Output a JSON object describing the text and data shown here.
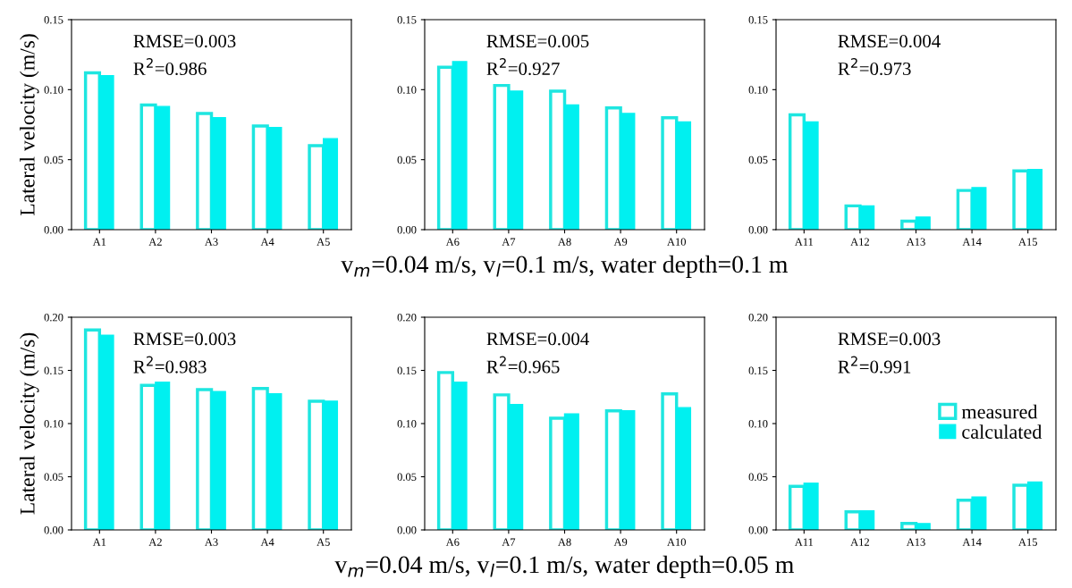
{
  "chart_data": [
    {
      "type": "bar",
      "ylabel": "Lateral velocity (m/s)",
      "categories": [
        "A1",
        "A2",
        "A3",
        "A4",
        "A5"
      ],
      "ylim": [
        0,
        0.15
      ],
      "yticks": [
        {
          "value": 0,
          "label": "0.00"
        },
        {
          "value": 0.05,
          "label": "0.05"
        },
        {
          "value": 0.1,
          "label": "0.10"
        },
        {
          "value": 0.15,
          "label": "0.15"
        }
      ],
      "annotations": [
        "RMSE=0.003",
        "R$^{2}$=0.986"
      ],
      "legend": false,
      "series": [
        {
          "color": "#1ee6e0",
          "values": [
            0.112,
            0.089,
            0.083,
            0.074,
            0.06
          ]
        },
        {
          "color": "#00f0f0",
          "values": [
            0.11,
            0.088,
            0.08,
            0.073,
            0.065
          ]
        }
      ]
    },
    {
      "type": "bar",
      "xlabel": "v$_{m}$=0.04 m/s, v$_{l}$=0.1 m/s, water depth=0.1 m",
      "categories": [
        "A6",
        "A7",
        "A8",
        "A9",
        "A10"
      ],
      "ylim": [
        0,
        0.15
      ],
      "yticks": [
        {
          "value": 0,
          "label": "0.00"
        },
        {
          "value": 0.05,
          "label": "0.05"
        },
        {
          "value": 0.1,
          "label": "0.10"
        },
        {
          "value": 0.15,
          "label": "0.15"
        }
      ],
      "annotations": [
        "RMSE=0.005",
        "R$^{2}$=0.927"
      ],
      "legend": false,
      "series": [
        {
          "color": "#1ee6e0",
          "values": [
            0.116,
            0.103,
            0.099,
            0.087,
            0.08
          ]
        },
        {
          "color": "#00f0f0",
          "values": [
            0.12,
            0.099,
            0.089,
            0.083,
            0.077
          ]
        }
      ]
    },
    {
      "type": "bar",
      "categories": [
        "A11",
        "A12",
        "A13",
        "A14",
        "A15"
      ],
      "ylim": [
        0,
        0.15
      ],
      "yticks": [
        {
          "value": 0,
          "label": "0.00"
        },
        {
          "value": 0.05,
          "label": "0.05"
        },
        {
          "value": 0.1,
          "label": "0.10"
        },
        {
          "value": 0.15,
          "label": "0.15"
        }
      ],
      "annotations": [
        "RMSE=0.004",
        "R$^{2}$=0.973"
      ],
      "legend": false,
      "series": [
        {
          "color": "#1ee6e0",
          "values": [
            0.082,
            0.017,
            0.006,
            0.028,
            0.042
          ]
        },
        {
          "color": "#00f0f0",
          "values": [
            0.077,
            0.017,
            0.009,
            0.03,
            0.043
          ]
        }
      ]
    },
    {
      "type": "bar",
      "ylabel": "Lateral velocity (m/s)",
      "categories": [
        "A1",
        "A2",
        "A3",
        "A4",
        "A5"
      ],
      "ylim": [
        0,
        0.2
      ],
      "yticks": [
        {
          "value": 0,
          "label": "0.00"
        },
        {
          "value": 0.05,
          "label": "0.05"
        },
        {
          "value": 0.1,
          "label": "0.10"
        },
        {
          "value": 0.15,
          "label": "0.15"
        },
        {
          "value": 0.2,
          "label": "0.20"
        }
      ],
      "annotations": [
        "RMSE=0.003",
        "R$^{2}$=0.983"
      ],
      "legend": false,
      "series": [
        {
          "color": "#1ee6e0",
          "values": [
            0.188,
            0.136,
            0.132,
            0.133,
            0.121
          ]
        },
        {
          "color": "#00f0f0",
          "values": [
            0.183,
            0.139,
            0.13,
            0.128,
            0.121
          ]
        }
      ]
    },
    {
      "type": "bar",
      "xlabel": "v$_{m}$=0.04 m/s, v$_{l}$=0.1 m/s, water depth=0.05 m",
      "categories": [
        "A6",
        "A7",
        "A8",
        "A9",
        "A10"
      ],
      "ylim": [
        0,
        0.2
      ],
      "yticks": [
        {
          "value": 0,
          "label": "0.00"
        },
        {
          "value": 0.05,
          "label": "0.05"
        },
        {
          "value": 0.1,
          "label": "0.10"
        },
        {
          "value": 0.15,
          "label": "0.15"
        },
        {
          "value": 0.2,
          "label": "0.20"
        }
      ],
      "annotations": [
        "RMSE=0.004",
        "R$^{2}$=0.965"
      ],
      "legend": false,
      "series": [
        {
          "color": "#1ee6e0",
          "values": [
            0.148,
            0.127,
            0.105,
            0.112,
            0.128
          ]
        },
        {
          "color": "#00f0f0",
          "values": [
            0.139,
            0.118,
            0.109,
            0.112,
            0.115
          ]
        }
      ]
    },
    {
      "type": "bar",
      "categories": [
        "A11",
        "A12",
        "A13",
        "A14",
        "A15"
      ],
      "ylim": [
        0,
        0.2
      ],
      "yticks": [
        {
          "value": 0,
          "label": "0.00"
        },
        {
          "value": 0.05,
          "label": "0.05"
        },
        {
          "value": 0.1,
          "label": "0.10"
        },
        {
          "value": 0.15,
          "label": "0.15"
        },
        {
          "value": 0.2,
          "label": "0.20"
        }
      ],
      "annotations": [
        "RMSE=0.003",
        "R$^{2}$=0.991"
      ],
      "legend": "center right",
      "series": [
        {
          "name": "measured",
          "color": "#1ee6e0",
          "values": [
            0.041,
            0.017,
            0.006,
            0.028,
            0.042
          ]
        },
        {
          "name": "calculated",
          "color": "#00f0f0",
          "values": [
            0.044,
            0.018,
            0.006,
            0.031,
            0.045
          ]
        }
      ]
    }
  ]
}
